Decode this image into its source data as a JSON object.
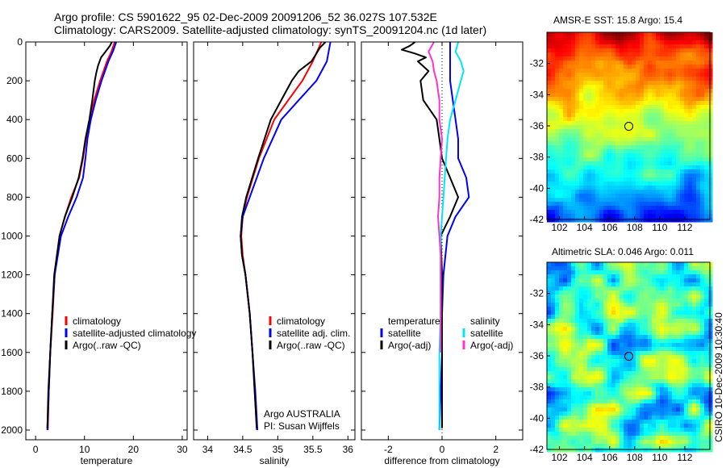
{
  "header": {
    "line1": "Argo profile: CS 5901622_95 02-Dec-2009 20091206_52 36.027S 107.532E",
    "line2": "Climatology: CARS2009. Satellite-adjusted climatology: synTS_20091204.nc (1d later)"
  },
  "stamp": "CSIRO 10-Dec-2009 10:30:40",
  "colors": {
    "red": "#ff0000",
    "blue": "#0000ff",
    "black": "#000000",
    "cyan": "#00e5ff",
    "magenta": "#ff33cc"
  },
  "chart_data": [
    {
      "type": "line",
      "xlabel": "temperature",
      "xlim": [
        -2,
        31
      ],
      "ylim": [
        0,
        2050
      ],
      "y_inverted": true,
      "xticks": [
        0,
        10,
        20,
        30
      ],
      "yticks": [
        0,
        200,
        400,
        600,
        800,
        1000,
        1200,
        1400,
        1600,
        1800,
        2000
      ],
      "legend": [
        "climatology",
        "satellite-adjusted climatology",
        "Argo(..raw -QC)"
      ],
      "legend_position": "lower-right",
      "series": [
        {
          "color": "red",
          "depth": [
            0,
            50,
            100,
            200,
            300,
            400,
            500,
            600,
            700,
            800,
            900,
            1000,
            1200,
            1400,
            1600,
            1800,
            2000
          ],
          "values": [
            16.2,
            15.5,
            14.6,
            13.2,
            12.0,
            11.0,
            10.3,
            9.7,
            8.9,
            7.3,
            6.0,
            4.9,
            3.9,
            3.5,
            3.0,
            2.7,
            2.5
          ]
        },
        {
          "color": "blue",
          "depth": [
            0,
            50,
            100,
            200,
            300,
            400,
            500,
            600,
            700,
            800,
            900,
            1000,
            1200,
            1400,
            1600,
            1800,
            2000
          ],
          "values": [
            16.5,
            15.8,
            14.9,
            13.5,
            12.3,
            11.3,
            10.6,
            10.2,
            9.7,
            8.4,
            6.7,
            5.2,
            3.9,
            3.4,
            3.0,
            2.7,
            2.4
          ]
        },
        {
          "color": "black",
          "depth": [
            0,
            20,
            50,
            80,
            120,
            160,
            200,
            300,
            400,
            500,
            600,
            700,
            800,
            900,
            1000,
            1200,
            1400,
            1600,
            1800,
            1990
          ],
          "values": [
            15.6,
            15.2,
            14.3,
            13.4,
            12.8,
            12.4,
            12.1,
            11.6,
            11.0,
            10.2,
            9.6,
            8.8,
            7.5,
            6.0,
            4.9,
            3.8,
            3.4,
            3.0,
            2.6,
            2.4
          ]
        }
      ]
    },
    {
      "type": "line",
      "xlabel": "salinity",
      "xlim": [
        33.8,
        36.1
      ],
      "ylim": [
        0,
        2050
      ],
      "y_inverted": true,
      "xticks": [
        34,
        34.5,
        35,
        35.5,
        36
      ],
      "legend": [
        "climatology",
        "satellite adj. clim.",
        "Argo(..raw -QC)"
      ],
      "legend_position": "lower-right",
      "annotation": [
        "Argo AUSTRALIA",
        "PI: Susan Wijffels"
      ],
      "series": [
        {
          "color": "red",
          "depth": [
            0,
            100,
            200,
            300,
            400,
            600,
            800,
            900,
            1000,
            1100,
            1200,
            1400,
            1600,
            1800,
            2000
          ],
          "values": [
            35.62,
            35.5,
            35.35,
            35.15,
            34.95,
            34.73,
            34.56,
            34.5,
            34.48,
            34.5,
            34.54,
            34.6,
            34.64,
            34.67,
            34.7
          ]
        },
        {
          "color": "blue",
          "depth": [
            0,
            100,
            200,
            300,
            400,
            600,
            800,
            900,
            1000,
            1100,
            1200,
            1400,
            1600,
            1800,
            2000
          ],
          "values": [
            35.75,
            35.7,
            35.55,
            35.3,
            35.05,
            34.8,
            34.6,
            34.5,
            34.47,
            34.49,
            34.54,
            34.6,
            34.64,
            34.68,
            34.71
          ]
        },
        {
          "color": "black",
          "depth": [
            0,
            30,
            60,
            100,
            150,
            200,
            300,
            400,
            600,
            800,
            900,
            1000,
            1100,
            1200,
            1400,
            1600,
            1800,
            1990
          ],
          "values": [
            35.68,
            35.6,
            35.55,
            35.48,
            35.3,
            35.2,
            35.05,
            34.9,
            34.72,
            34.55,
            34.49,
            34.47,
            34.49,
            34.54,
            34.6,
            34.64,
            34.67,
            34.7
          ]
        }
      ]
    },
    {
      "type": "line",
      "xlabel": "difference from climatology",
      "xlim": [
        -3,
        3
      ],
      "ylim": [
        0,
        2050
      ],
      "y_inverted": true,
      "xticks": [
        -2,
        0,
        2
      ],
      "legend": [
        "temperature",
        "satellite",
        "Argo(-adj)",
        "salinity",
        "satellite",
        "Argo(-adj)"
      ],
      "legend_position": "lower-center",
      "series": [
        {
          "name": "temperature satellite",
          "color": "blue",
          "depth": [
            0,
            100,
            200,
            300,
            400,
            500,
            600,
            700,
            800,
            900,
            1000,
            1200,
            1400,
            1600,
            1800,
            2000
          ],
          "values": [
            0.3,
            0.3,
            0.3,
            0.4,
            0.5,
            0.6,
            0.6,
            0.9,
            1.0,
            0.5,
            0.2,
            0.05,
            0,
            0,
            -0.05,
            -0.1
          ]
        },
        {
          "name": "temperature Argo(-adj)",
          "color": "black",
          "depth": [
            0,
            20,
            40,
            60,
            80,
            100,
            150,
            200,
            300,
            400,
            500,
            600,
            700,
            800,
            900,
            1000,
            1200,
            1400,
            1600,
            1800,
            1990
          ],
          "values": [
            -1.0,
            -1.2,
            -1.5,
            -1.0,
            -0.6,
            -0.9,
            -0.5,
            -0.8,
            -0.7,
            -0.2,
            -0.1,
            0,
            0.3,
            0.6,
            0.3,
            -0.05,
            0,
            0,
            0,
            0,
            0
          ]
        },
        {
          "name": "salinity satellite",
          "color": "cyan",
          "depth": [
            0,
            50,
            100,
            150,
            200,
            300,
            400,
            500,
            600,
            700,
            800,
            900,
            1000,
            1200,
            1400,
            1600,
            1800,
            2000
          ],
          "values": [
            0.6,
            0.5,
            0.7,
            0.8,
            0.7,
            0.5,
            0.3,
            0.2,
            0.15,
            0.1,
            0.05,
            0,
            -0.05,
            -0.05,
            -0.05,
            -0.1,
            -0.1,
            -0.1
          ]
        },
        {
          "name": "salinity Argo(-adj)",
          "color": "magenta",
          "depth": [
            0,
            50,
            100,
            150,
            200,
            300,
            400,
            500,
            600,
            700,
            800,
            900,
            1000,
            1100,
            1200,
            1400,
            1600
          ],
          "values": [
            -0.3,
            -0.5,
            -0.35,
            -0.3,
            -0.2,
            -0.1,
            -0.1,
            0,
            -0.05,
            -0.1,
            -0.1,
            -0.15,
            -0.1,
            -0.05,
            -0.05,
            -0.05,
            -0.05
          ]
        }
      ]
    },
    {
      "type": "heatmap",
      "title": "AMSR-E SST: 15.8 Argo: 15.4",
      "xlim": [
        101,
        114
      ],
      "ylim": [
        -42,
        -30
      ],
      "xticks": [
        102,
        104,
        106,
        108,
        110,
        112
      ],
      "yticks": [
        -32,
        -34,
        -36,
        -38,
        -40,
        -42
      ],
      "marker": {
        "lon": 107.532,
        "lat": -36.027
      }
    },
    {
      "type": "heatmap",
      "title": "Altimetric SLA: 0.046 Argo: 0.011",
      "xlim": [
        101,
        114
      ],
      "ylim": [
        -42,
        -30
      ],
      "xticks": [
        102,
        104,
        106,
        108,
        110,
        112
      ],
      "yticks": [
        -32,
        -34,
        -36,
        -38,
        -40,
        -42
      ],
      "marker": {
        "lon": 107.532,
        "lat": -36.027
      }
    }
  ]
}
